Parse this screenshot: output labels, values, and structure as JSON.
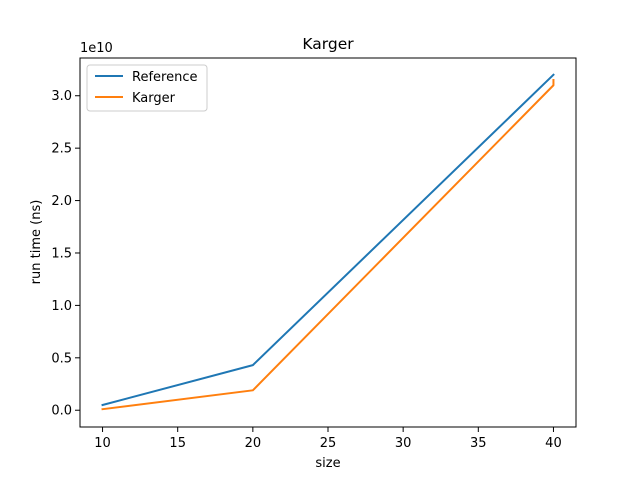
{
  "chart_data": {
    "type": "line",
    "title": "Karger",
    "xlabel": "size",
    "ylabel": "run time (ns)",
    "y_offset_label": "1e10",
    "xlim": [
      8.5,
      41.5
    ],
    "ylim": [
      -1600000000.0,
      33600000000.0
    ],
    "x_ticks": [
      10,
      15,
      20,
      25,
      30,
      35,
      40
    ],
    "y_ticks": [
      0,
      5000000000.0,
      10000000000.0,
      15000000000.0,
      20000000000.0,
      25000000000.0,
      30000000000.0
    ],
    "y_tick_labels": [
      "0.0",
      "0.5",
      "1.0",
      "1.5",
      "2.0",
      "2.5",
      "3.0"
    ],
    "legend_position": "upper-left",
    "grid": false,
    "series": [
      {
        "name": "Reference",
        "color": "#1f77b4",
        "points": [
          [
            10,
            500000000.0
          ],
          [
            20,
            4300000000.0
          ],
          [
            40,
            32000000000.0
          ]
        ]
      },
      {
        "name": "Karger",
        "color": "#ff7f0e",
        "points": [
          [
            10,
            100000000.0
          ],
          [
            20,
            1900000000.0
          ],
          [
            20,
            1900000000.0
          ],
          [
            40,
            31000000000.0
          ],
          [
            40,
            31500000000.0
          ]
        ]
      }
    ]
  }
}
